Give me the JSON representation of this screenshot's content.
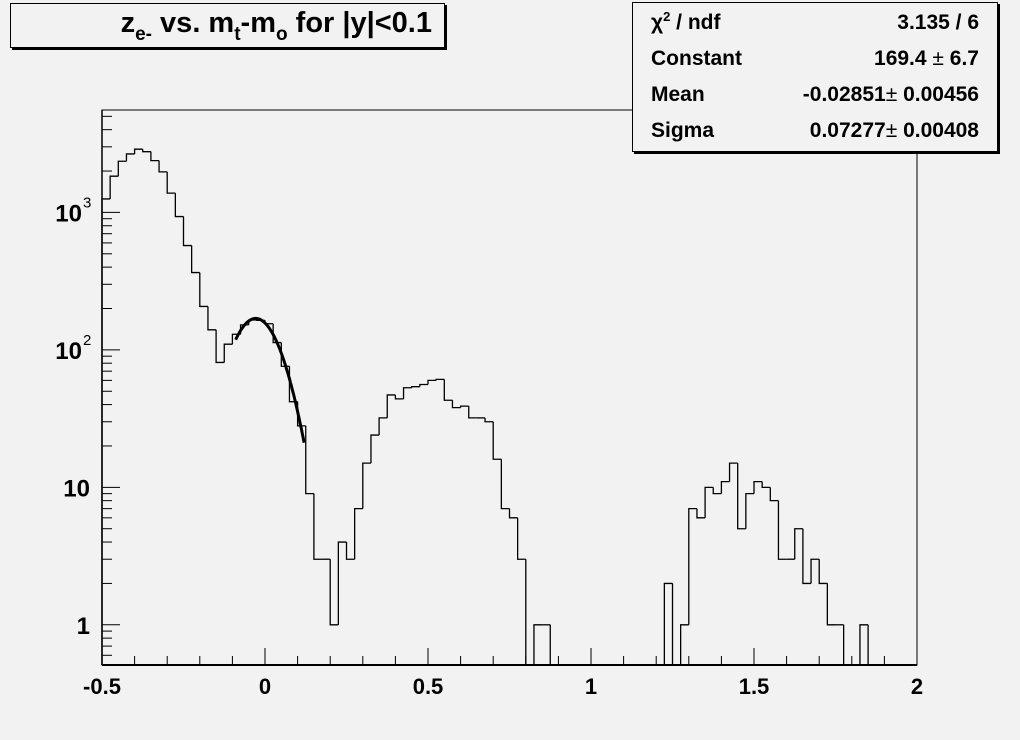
{
  "title": {
    "z": "z",
    "z_sub": "e-",
    "vs": " vs. m",
    "t_sub": "t",
    "minus": "-m",
    "o_sub": "o",
    "rest": " for |y|<0.1"
  },
  "stats": {
    "rows": [
      {
        "label": "χ",
        "label_sup": "2",
        "label_rest": " / ndf",
        "value": "3.135 / 6"
      },
      {
        "label": "Constant",
        "value": "169.4",
        "pm": "±",
        "err": "6.7"
      },
      {
        "label": "Mean",
        "value": "-0.02851",
        "pm": "±",
        "err": "0.00456"
      },
      {
        "label": "Sigma",
        "value": "0.07277",
        "pm": "±",
        "err": "0.00408"
      }
    ]
  },
  "chart_data": {
    "type": "histogram-step",
    "title": "z_{e-} vs. m_t-m_o for |y|<0.1",
    "xlim": [
      -0.5,
      2.0
    ],
    "ylim": [
      0.51,
      5560
    ],
    "yscale": "log",
    "grid": false,
    "bin_width": 0.025,
    "counts": [
      1253,
      1834,
      2356,
      2663,
      2883,
      2766,
      2382,
      1972,
      1381,
      933,
      574,
      365,
      207,
      140,
      81,
      110,
      130,
      152,
      165,
      164,
      155,
      113,
      76,
      42,
      28,
      9,
      3,
      3,
      1,
      4,
      3,
      7,
      15,
      24,
      32,
      47,
      44,
      53,
      54,
      56,
      60,
      61,
      43,
      38,
      39,
      32,
      32,
      30,
      16,
      7,
      6,
      3,
      0,
      1,
      1,
      0,
      0,
      0,
      0,
      0,
      0,
      0,
      0,
      0,
      0,
      0,
      0,
      0,
      0,
      2,
      0,
      1,
      7,
      6,
      10,
      9,
      11,
      15,
      5,
      9,
      11,
      10,
      8,
      3,
      3,
      5,
      2,
      3,
      2,
      1,
      1,
      0,
      0,
      1,
      0,
      0,
      0,
      0,
      0,
      0
    ],
    "fit": {
      "function": "gaus",
      "constant": 169.4,
      "mean": -0.02851,
      "sigma": 0.07277,
      "range": [
        -0.09,
        0.12
      ]
    },
    "x_ticks": [
      {
        "v": -0.5,
        "label": "-0.5"
      },
      {
        "v": 0,
        "label": "0"
      },
      {
        "v": 0.5,
        "label": "0.5"
      },
      {
        "v": 1,
        "label": "1"
      },
      {
        "v": 1.5,
        "label": "1.5"
      },
      {
        "v": 2,
        "label": "2"
      }
    ],
    "y_ticks": [
      {
        "v": 1,
        "base": "1",
        "exp": ""
      },
      {
        "v": 10,
        "base": "10",
        "exp": ""
      },
      {
        "v": 100,
        "base": "10",
        "exp": "2"
      },
      {
        "v": 1000,
        "base": "10",
        "exp": "3"
      }
    ],
    "colors": {
      "background": "#f2f2f2",
      "line": "#000000"
    }
  }
}
